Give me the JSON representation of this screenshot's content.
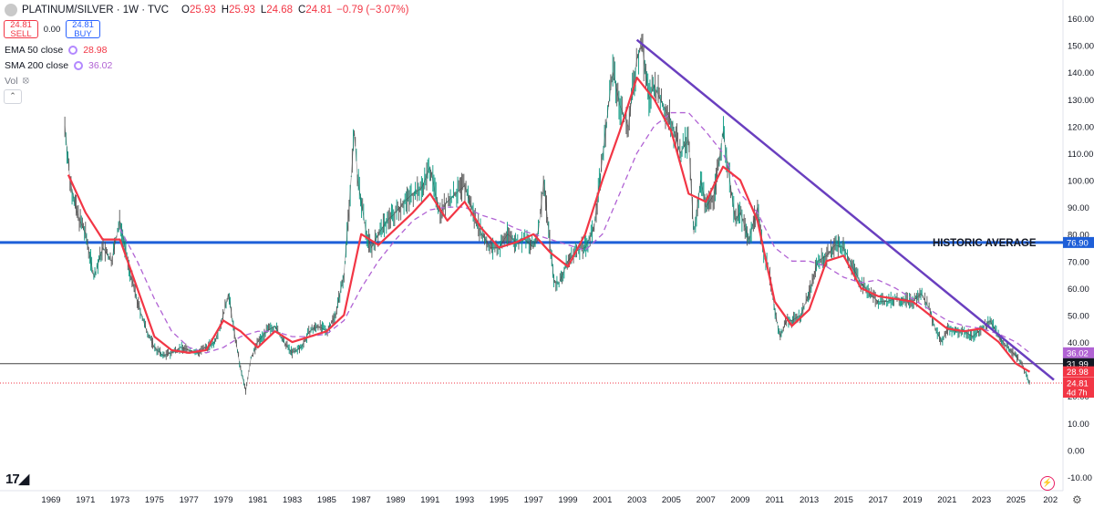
{
  "header": {
    "symbol": "PLATINUM/SILVER · 1W · TVC",
    "open_label": "O",
    "open": "25.93",
    "high_label": "H",
    "high": "25.93",
    "low_label": "L",
    "low": "24.68",
    "close_label": "C",
    "close": "24.81",
    "change": "−0.79 (−3.07%)"
  },
  "trade": {
    "sell_price": "24.81",
    "sell_label": "SELL",
    "spread": "0.00",
    "buy_price": "24.81",
    "buy_label": "BUY"
  },
  "indicators": {
    "ema_label": "EMA 50 close",
    "ema_value": "28.98",
    "sma_label": "SMA 200 close",
    "sma_value": "36.02",
    "vol_label": "Vol"
  },
  "icons": [
    "symbol-icon",
    "eye-off-icon",
    "collapse-icon",
    "tradingview-logo-icon",
    "bolt-icon",
    "settings-icon"
  ],
  "colors": {
    "price": "#3b3b3b",
    "ema": "#f23645",
    "sma": "#b163d4",
    "historic_avg": "#1e5fd8",
    "trendline": "#6a3fbf",
    "support": "#444444",
    "last_price": "#f23645"
  },
  "chart_data": {
    "type": "line",
    "title": "PLATINUM/SILVER",
    "xlabel": "",
    "ylabel": "",
    "x_ticks": [
      "1969",
      "1971",
      "1973",
      "1975",
      "1977",
      "1979",
      "1981",
      "1983",
      "1985",
      "1987",
      "1989",
      "1991",
      "1993",
      "1995",
      "1997",
      "1999",
      "2001",
      "2003",
      "2005",
      "2007",
      "2009",
      "2011",
      "2013",
      "2015",
      "2017",
      "2019",
      "2021",
      "2023",
      "2025",
      "202"
    ],
    "y_ticks": [
      "160.00",
      "150.00",
      "140.00",
      "130.00",
      "120.00",
      "110.00",
      "100.00",
      "90.00",
      "80.00",
      "70.00",
      "60.00",
      "50.00",
      "40.00",
      "30.00",
      "20.00",
      "10.00",
      "0.00",
      "-10.00"
    ],
    "ylim": [
      -10,
      160
    ],
    "xlim": [
      1968.5,
      2027.2
    ],
    "grid": false,
    "series": [
      {
        "name": "price",
        "x": [
          1969.8,
          1970.1,
          1970.5,
          1971,
          1971.5,
          1972,
          1972.5,
          1973,
          1973.5,
          1974,
          1974.5,
          1975,
          1975.5,
          1976,
          1976.5,
          1977,
          1977.5,
          1978,
          1978.5,
          1979,
          1979.3,
          1979.6,
          1980,
          1980.3,
          1980.6,
          1981,
          1981.5,
          1982,
          1982.5,
          1983,
          1983.5,
          1984,
          1984.5,
          1985,
          1985.5,
          1986,
          1986.3,
          1986.6,
          1986.8,
          1987,
          1987.3,
          1987.6,
          1988,
          1988.5,
          1989,
          1989.5,
          1990,
          1990.5,
          1991,
          1991.3,
          1991.6,
          1992,
          1992.5,
          1993,
          1993.5,
          1994,
          1994.5,
          1995,
          1995.5,
          1996,
          1996.5,
          1997,
          1997.3,
          1997.6,
          1997.9,
          1998.2,
          1998.5,
          1999,
          1999.5,
          2000,
          2000.5,
          2001,
          2001.3,
          2001.6,
          2002,
          2002.5,
          2003,
          2003.3,
          2003.7,
          2004,
          2004.5,
          2005,
          2005.5,
          2006,
          2006.3,
          2006.7,
          2007,
          2007.5,
          2008,
          2008.3,
          2008.7,
          2009,
          2009.5,
          2010,
          2010.3,
          2010.7,
          2011,
          2011.3,
          2011.7,
          2012,
          2012.5,
          2013,
          2013.5,
          2014,
          2014.5,
          2015,
          2015.5,
          2016,
          2016.5,
          2017,
          2017.5,
          2018,
          2018.5,
          2019,
          2019.5,
          2020,
          2020.3,
          2020.7,
          2021,
          2021.5,
          2022,
          2022.5,
          2023,
          2023.5,
          2024,
          2024.5,
          2025,
          2025.3,
          2025.6,
          2025.8
        ],
        "values": [
          120,
          100,
          88,
          80,
          64,
          75,
          70,
          85,
          68,
          55,
          45,
          38,
          35,
          36,
          38,
          37,
          36,
          38,
          40,
          50,
          58,
          45,
          30,
          22,
          34,
          40,
          44,
          46,
          40,
          36,
          38,
          44,
          46,
          44,
          50,
          65,
          90,
          118,
          100,
          92,
          80,
          75,
          80,
          85,
          88,
          92,
          95,
          97,
          105,
          95,
          88,
          92,
          95,
          98,
          88,
          80,
          75,
          75,
          80,
          77,
          78,
          75,
          82,
          100,
          80,
          62,
          62,
          70,
          74,
          75,
          82,
          108,
          125,
          140,
          128,
          120,
          145,
          150,
          130,
          135,
          128,
          122,
          110,
          115,
          80,
          100,
          90,
          95,
          118,
          105,
          85,
          88,
          78,
          90,
          75,
          65,
          52,
          42,
          48,
          48,
          50,
          58,
          70,
          72,
          76,
          75,
          68,
          62,
          58,
          55,
          55,
          56,
          56,
          55,
          58,
          52,
          45,
          40,
          45,
          44,
          44,
          42,
          45,
          48,
          42,
          38,
          35,
          32,
          28,
          24.81
        ]
      },
      {
        "name": "EMA 50 close",
        "x": [
          1970,
          1971,
          1972,
          1973,
          1974,
          1975,
          1976,
          1977,
          1978,
          1979,
          1980,
          1981,
          1982,
          1983,
          1984,
          1985,
          1986,
          1987,
          1988,
          1989,
          1990,
          1991,
          1992,
          1993,
          1994,
          1995,
          1996,
          1997,
          1998,
          1999,
          2000,
          2001,
          2002,
          2003,
          2004,
          2005,
          2006,
          2007,
          2008,
          2009,
          2010,
          2011,
          2012,
          2013,
          2014,
          2015,
          2016,
          2017,
          2018,
          2019,
          2020,
          2021,
          2022,
          2023,
          2024,
          2025,
          2025.8
        ],
        "values": [
          102,
          88,
          78,
          78,
          60,
          42,
          37,
          36,
          37,
          48,
          44,
          38,
          44,
          40,
          42,
          44,
          50,
          80,
          76,
          82,
          88,
          95,
          85,
          92,
          82,
          75,
          77,
          80,
          73,
          68,
          80,
          100,
          118,
          138,
          130,
          118,
          95,
          92,
          105,
          100,
          85,
          55,
          46,
          52,
          70,
          72,
          60,
          57,
          56,
          55,
          50,
          45,
          44,
          45,
          40,
          32,
          28.98
        ]
      },
      {
        "name": "SMA 200 close",
        "x": [
          1973,
          1974,
          1975,
          1976,
          1977,
          1978,
          1979,
          1980,
          1981,
          1982,
          1983,
          1984,
          1985,
          1986,
          1987,
          1988,
          1989,
          1990,
          1991,
          1992,
          1993,
          1994,
          1995,
          1996,
          1997,
          1998,
          1999,
          2000,
          2001,
          2002,
          2003,
          2004,
          2005,
          2006,
          2007,
          2008,
          2009,
          2010,
          2011,
          2012,
          2013,
          2014,
          2015,
          2016,
          2017,
          2018,
          2019,
          2020,
          2021,
          2022,
          2023,
          2024,
          2025,
          2025.8
        ],
        "values": [
          82,
          70,
          56,
          44,
          38,
          36,
          38,
          42,
          44,
          44,
          42,
          42,
          43,
          48,
          60,
          70,
          78,
          85,
          89,
          90,
          90,
          87,
          85,
          82,
          80,
          78,
          76,
          74,
          80,
          95,
          110,
          120,
          125,
          125,
          118,
          110,
          95,
          88,
          75,
          70,
          70,
          68,
          64,
          62,
          63,
          60,
          56,
          52,
          48,
          46,
          45,
          43,
          40,
          36.02
        ]
      }
    ],
    "reference_lines": [
      {
        "name": "HISTORIC AVERAGE",
        "value": 76.9,
        "label": "HISTORIC AVERAGE"
      },
      {
        "name": "support",
        "value": 31.99
      },
      {
        "name": "last",
        "value": 24.81
      }
    ],
    "trendline": {
      "x": [
        2003.0,
        2027.2
      ],
      "values": [
        152,
        26
      ]
    },
    "price_tags": [
      {
        "name": "historic",
        "text": "76.90",
        "value": 76.9,
        "color": "#1e5fd8"
      },
      {
        "name": "sma",
        "text": "36.02",
        "value": 36.02,
        "color": "#b163d4"
      },
      {
        "name": "support",
        "text": "31.99",
        "value": 31.99,
        "color": "#131722"
      },
      {
        "name": "ema",
        "text": "28.98",
        "value": 28.98,
        "color": "#f23645"
      },
      {
        "name": "last",
        "text": "24.81",
        "sub": "4d 7h",
        "value": 24.81,
        "color": "#f23645"
      }
    ]
  }
}
